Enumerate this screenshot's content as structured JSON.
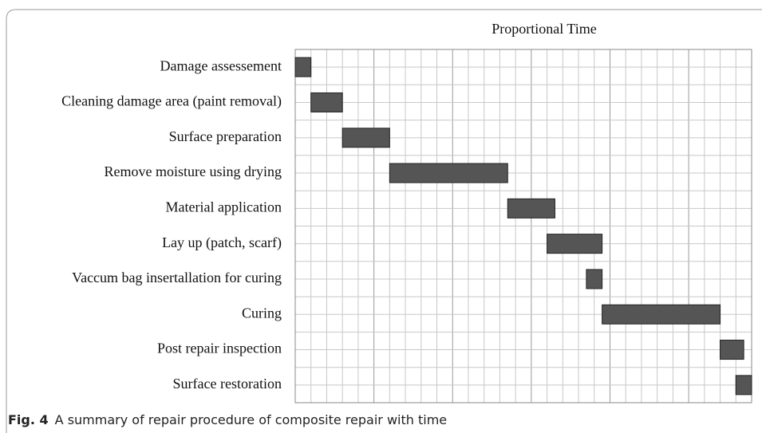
{
  "chart_data": {
    "type": "gantt",
    "title": "Proportional Time",
    "categories": [
      "Damage assessement",
      "Cleaning damage area (paint removal)",
      "Surface preparation",
      "Remove moisture using drying",
      "Material application",
      "Lay up  (patch, scarf)",
      "Vaccum bag insertallation for curing",
      "Curing",
      "Post repair inspection",
      "Surface restoration"
    ],
    "start": [
      0,
      1,
      3,
      6,
      13.5,
      16,
      18.5,
      19.5,
      27,
      28
    ],
    "duration": [
      1,
      2,
      3,
      7.5,
      3,
      3.5,
      1,
      7.5,
      1.5,
      1
    ],
    "color": "#555555",
    "xlim": [
      0,
      29
    ],
    "xticks": [
      0,
      1,
      2,
      3,
      4,
      5,
      6,
      7,
      8,
      9,
      10,
      11,
      12,
      13,
      14,
      15,
      16,
      17,
      18,
      19,
      20,
      21,
      22,
      23,
      24,
      25,
      26,
      27,
      28,
      29
    ],
    "grid": true,
    "caption": {
      "label": "Fig. 4",
      "text": "A summary of repair procedure of composite repair with time"
    }
  }
}
